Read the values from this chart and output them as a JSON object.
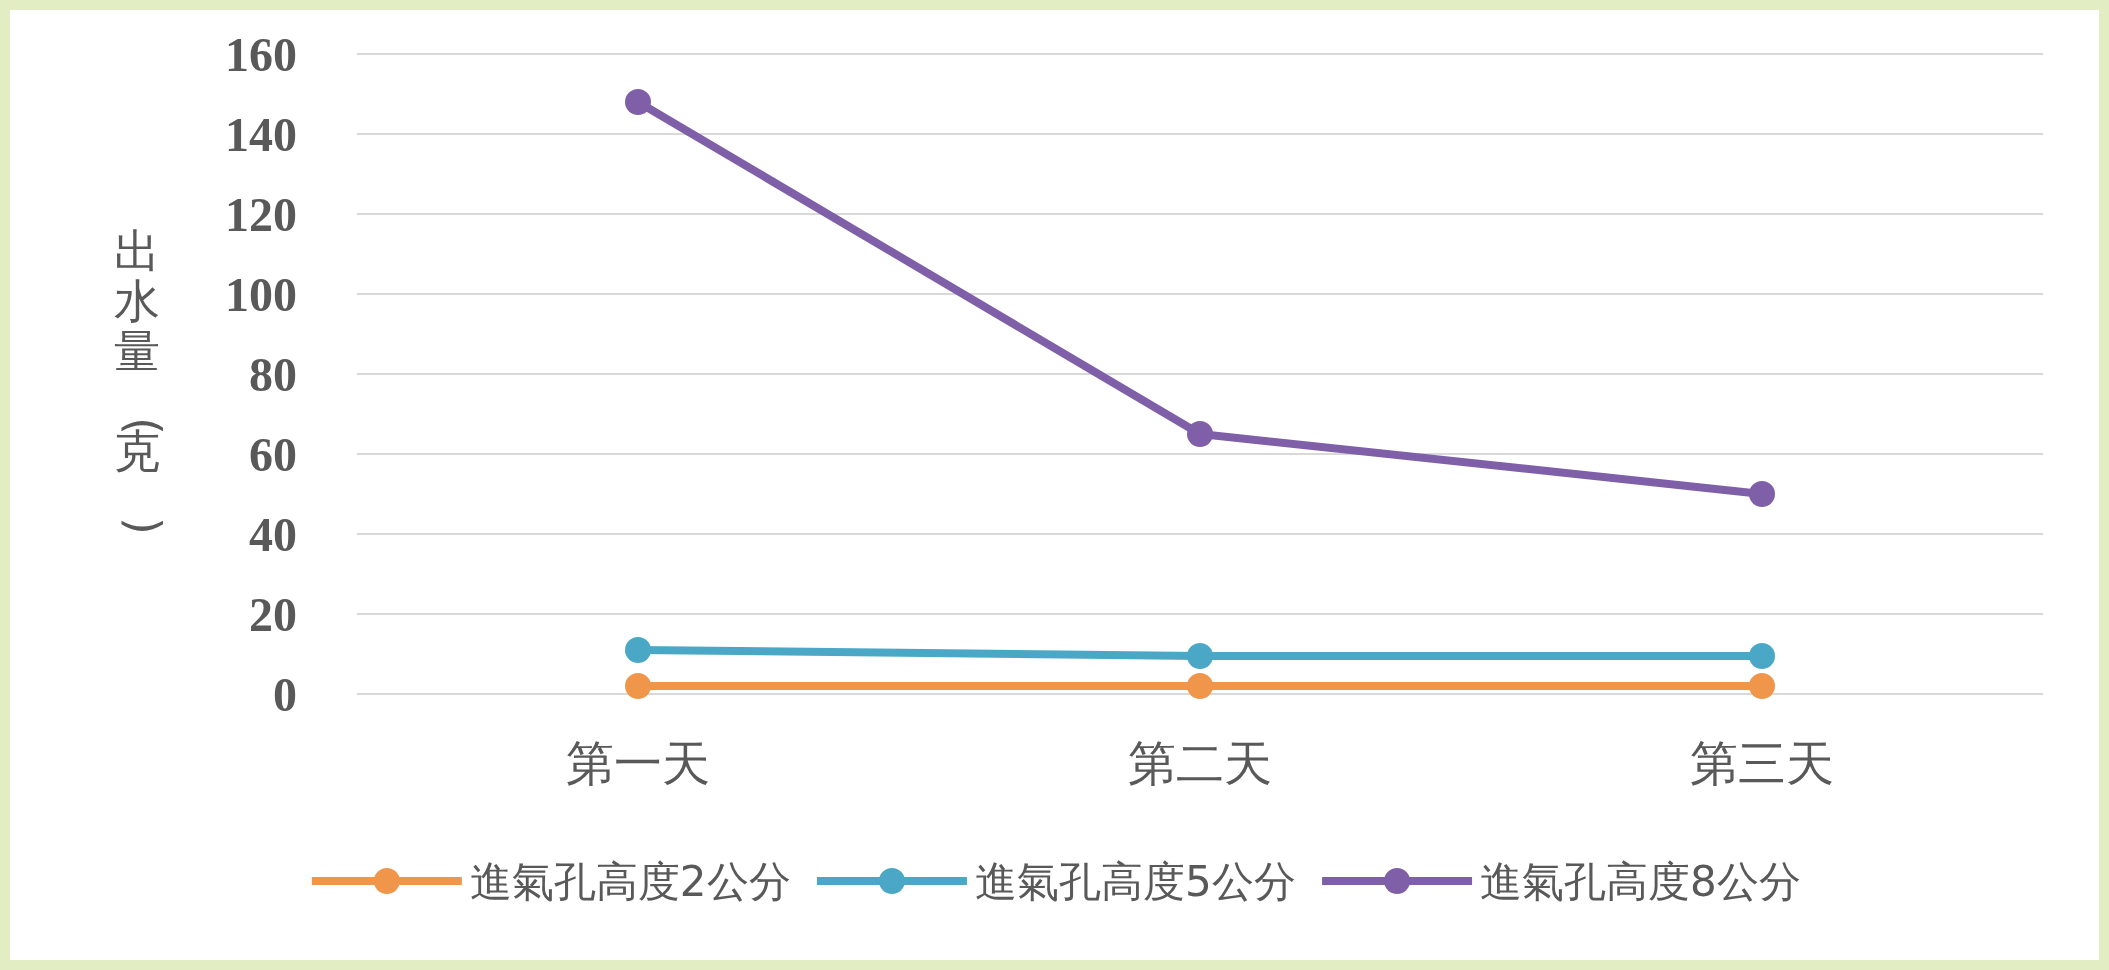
{
  "chart_data": {
    "type": "line",
    "ylabel": "出水量(克)",
    "categories": [
      "第一天",
      "第二天",
      "第三天"
    ],
    "series": [
      {
        "name": "進氣孔高度2公分",
        "color": "#f0964a",
        "values": [
          2,
          2,
          2
        ]
      },
      {
        "name": "進氣孔高度5公分",
        "color": "#4aa8c6",
        "values": [
          11,
          9.5,
          9.5
        ]
      },
      {
        "name": "進氣孔高度8公分",
        "color": "#7e5fa8",
        "values": [
          148,
          65,
          50
        ]
      }
    ],
    "ylim": [
      0,
      160
    ],
    "yticks": [
      0,
      20,
      40,
      60,
      80,
      100,
      120,
      140,
      160
    ],
    "grid": "y",
    "legend": "bottom",
    "marker": "circle",
    "line_style": "solid"
  }
}
